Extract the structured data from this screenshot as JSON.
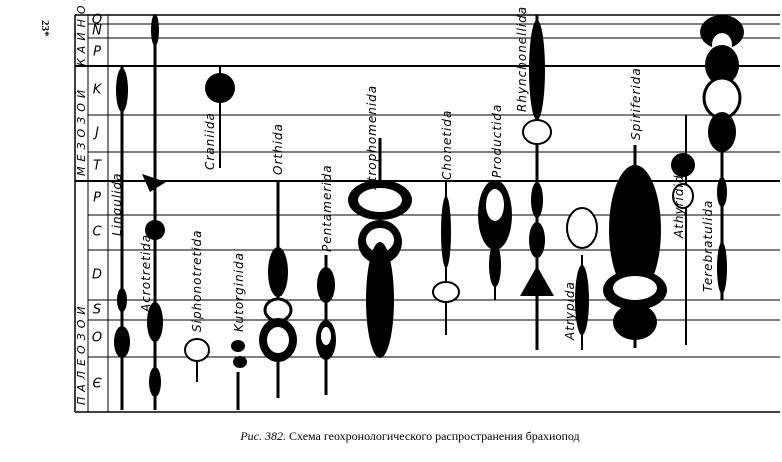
{
  "page_number": "23*",
  "eras": [
    {
      "label": "КАЙНОЗОЙ"
    },
    {
      "label": "МЕЗОЗОЙ"
    },
    {
      "label": "ПАЛЕОЗОЙ"
    }
  ],
  "periods": [
    "Q",
    "N",
    "P",
    "K",
    "J",
    "T",
    "P",
    "C",
    "D",
    "S",
    "O",
    "Є"
  ],
  "orders": [
    "Lingulida",
    "Acrotretida",
    "Siphonotretida",
    "Kutorginida",
    "Craniida",
    "Orthida",
    "Pentamerida",
    "Strophomenida",
    "Chonetida",
    "Productida",
    "Rhynchonellida",
    "Atrypida",
    "Spiriferida",
    "Athyridida",
    "Terebratulida"
  ],
  "caption": {
    "label": "Рис. 382.",
    "text": "Схема геохронологического распространения брахиопод"
  }
}
